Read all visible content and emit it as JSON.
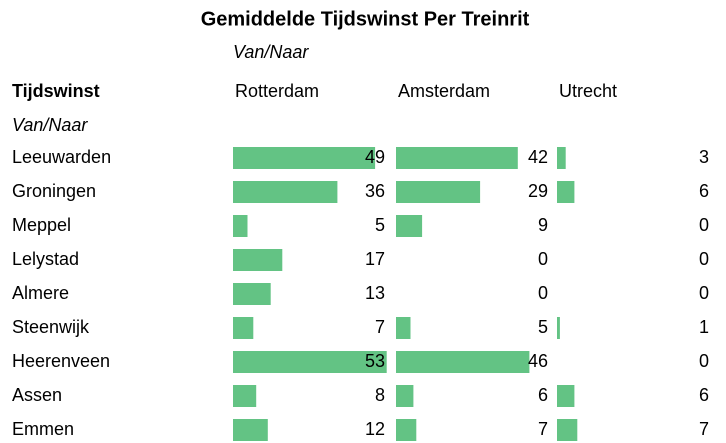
{
  "chart_data": {
    "type": "table_bars",
    "title": "Gemiddelde Tijdswinst Per Treinrit",
    "column_group": "Van/Naar",
    "row_header": "Tijdswinst",
    "row_group": "Van/Naar",
    "columns": [
      "Rotterdam",
      "Amsterdam",
      "Utrecht"
    ],
    "rows": [
      {
        "label": "Leeuwarden",
        "values": [
          49,
          42,
          3
        ]
      },
      {
        "label": "Groningen",
        "values": [
          36,
          29,
          6
        ]
      },
      {
        "label": "Meppel",
        "values": [
          5,
          9,
          0
        ]
      },
      {
        "label": "Lelystad",
        "values": [
          17,
          0,
          0
        ]
      },
      {
        "label": "Almere",
        "values": [
          13,
          0,
          0
        ]
      },
      {
        "label": "Steenwijk",
        "values": [
          7,
          5,
          1
        ]
      },
      {
        "label": "Heerenveen",
        "values": [
          53,
          46,
          0
        ]
      },
      {
        "label": "Assen",
        "values": [
          8,
          6,
          6
        ]
      },
      {
        "label": "Emmen",
        "values": [
          12,
          7,
          7
        ]
      }
    ],
    "color": "#63c384"
  }
}
